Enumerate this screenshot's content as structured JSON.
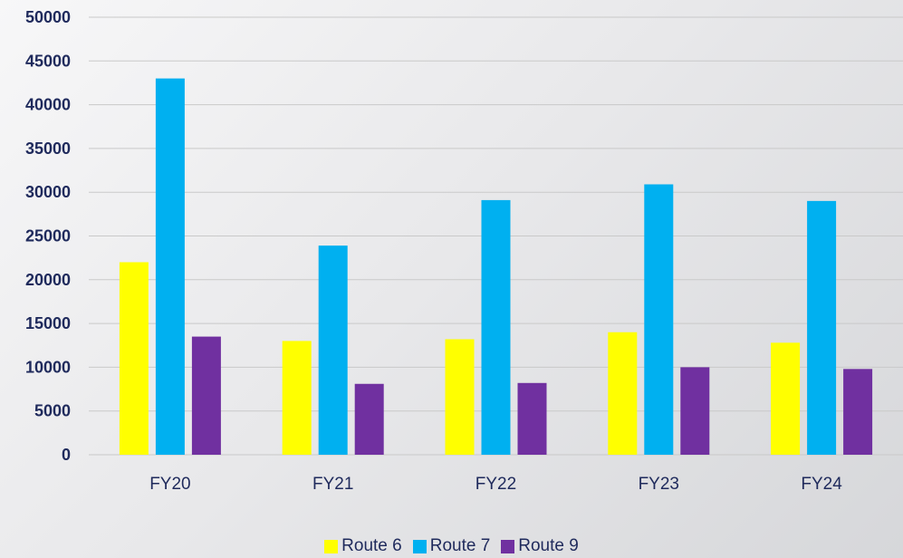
{
  "chart_data": {
    "type": "bar",
    "title": "",
    "xlabel": "",
    "ylabel": "",
    "categories": [
      "FY20",
      "FY21",
      "FY22",
      "FY23",
      "FY24"
    ],
    "series": [
      {
        "name": "Route 6",
        "color": "#ffff00",
        "values": [
          22000,
          13000,
          13200,
          14000,
          12800
        ]
      },
      {
        "name": "Route 7",
        "color": "#00b0f0",
        "values": [
          43000,
          23900,
          29100,
          30900,
          29000
        ]
      },
      {
        "name": "Route 9",
        "color": "#7030a0",
        "values": [
          13500,
          8100,
          8200,
          10000,
          9800
        ]
      }
    ],
    "yticks": [
      "0",
      "5000",
      "10000",
      "15000",
      "20000",
      "25000",
      "30000",
      "35000",
      "40000",
      "45000",
      "50000"
    ],
    "ylim": [
      0,
      50000
    ],
    "grid": true,
    "legend_position": "bottom"
  }
}
